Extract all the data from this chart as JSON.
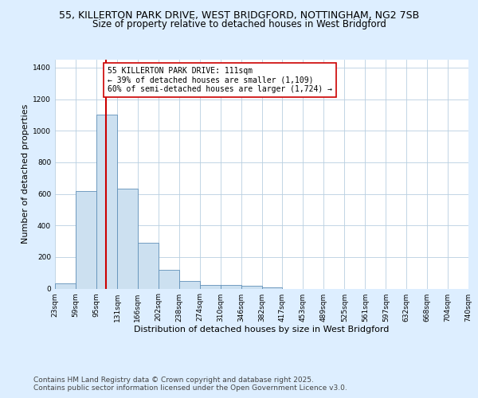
{
  "title_line1": "55, KILLERTON PARK DRIVE, WEST BRIDGFORD, NOTTINGHAM, NG2 7SB",
  "title_line2": "Size of property relative to detached houses in West Bridgford",
  "xlabel": "Distribution of detached houses by size in West Bridgford",
  "ylabel": "Number of detached properties",
  "bin_edges": [
    23,
    59,
    95,
    131,
    166,
    202,
    238,
    274,
    310,
    346,
    382,
    417,
    453,
    489,
    525,
    561,
    597,
    632,
    668,
    704,
    740
  ],
  "bar_heights": [
    35,
    620,
    1100,
    635,
    290,
    120,
    50,
    25,
    25,
    20,
    10,
    0,
    0,
    0,
    0,
    0,
    0,
    0,
    0,
    0
  ],
  "bar_color": "#cce0f0",
  "bar_edgecolor": "#6090b8",
  "vline_x": 111,
  "vline_color": "#cc0000",
  "annotation_text": "55 KILLERTON PARK DRIVE: 111sqm\n← 39% of detached houses are smaller (1,109)\n60% of semi-detached houses are larger (1,724) →",
  "annotation_box_edgecolor": "#cc0000",
  "annotation_box_facecolor": "#ffffff",
  "ylim": [
    0,
    1450
  ],
  "yticks": [
    0,
    200,
    400,
    600,
    800,
    1000,
    1200,
    1400
  ],
  "background_color": "#ddeeff",
  "plot_background": "#ffffff",
  "footer_line1": "Contains HM Land Registry data © Crown copyright and database right 2025.",
  "footer_line2": "Contains public sector information licensed under the Open Government Licence v3.0.",
  "title_fontsize": 9,
  "subtitle_fontsize": 8.5,
  "axis_label_fontsize": 8,
  "tick_fontsize": 6.5,
  "annotation_fontsize": 7,
  "footer_fontsize": 6.5
}
